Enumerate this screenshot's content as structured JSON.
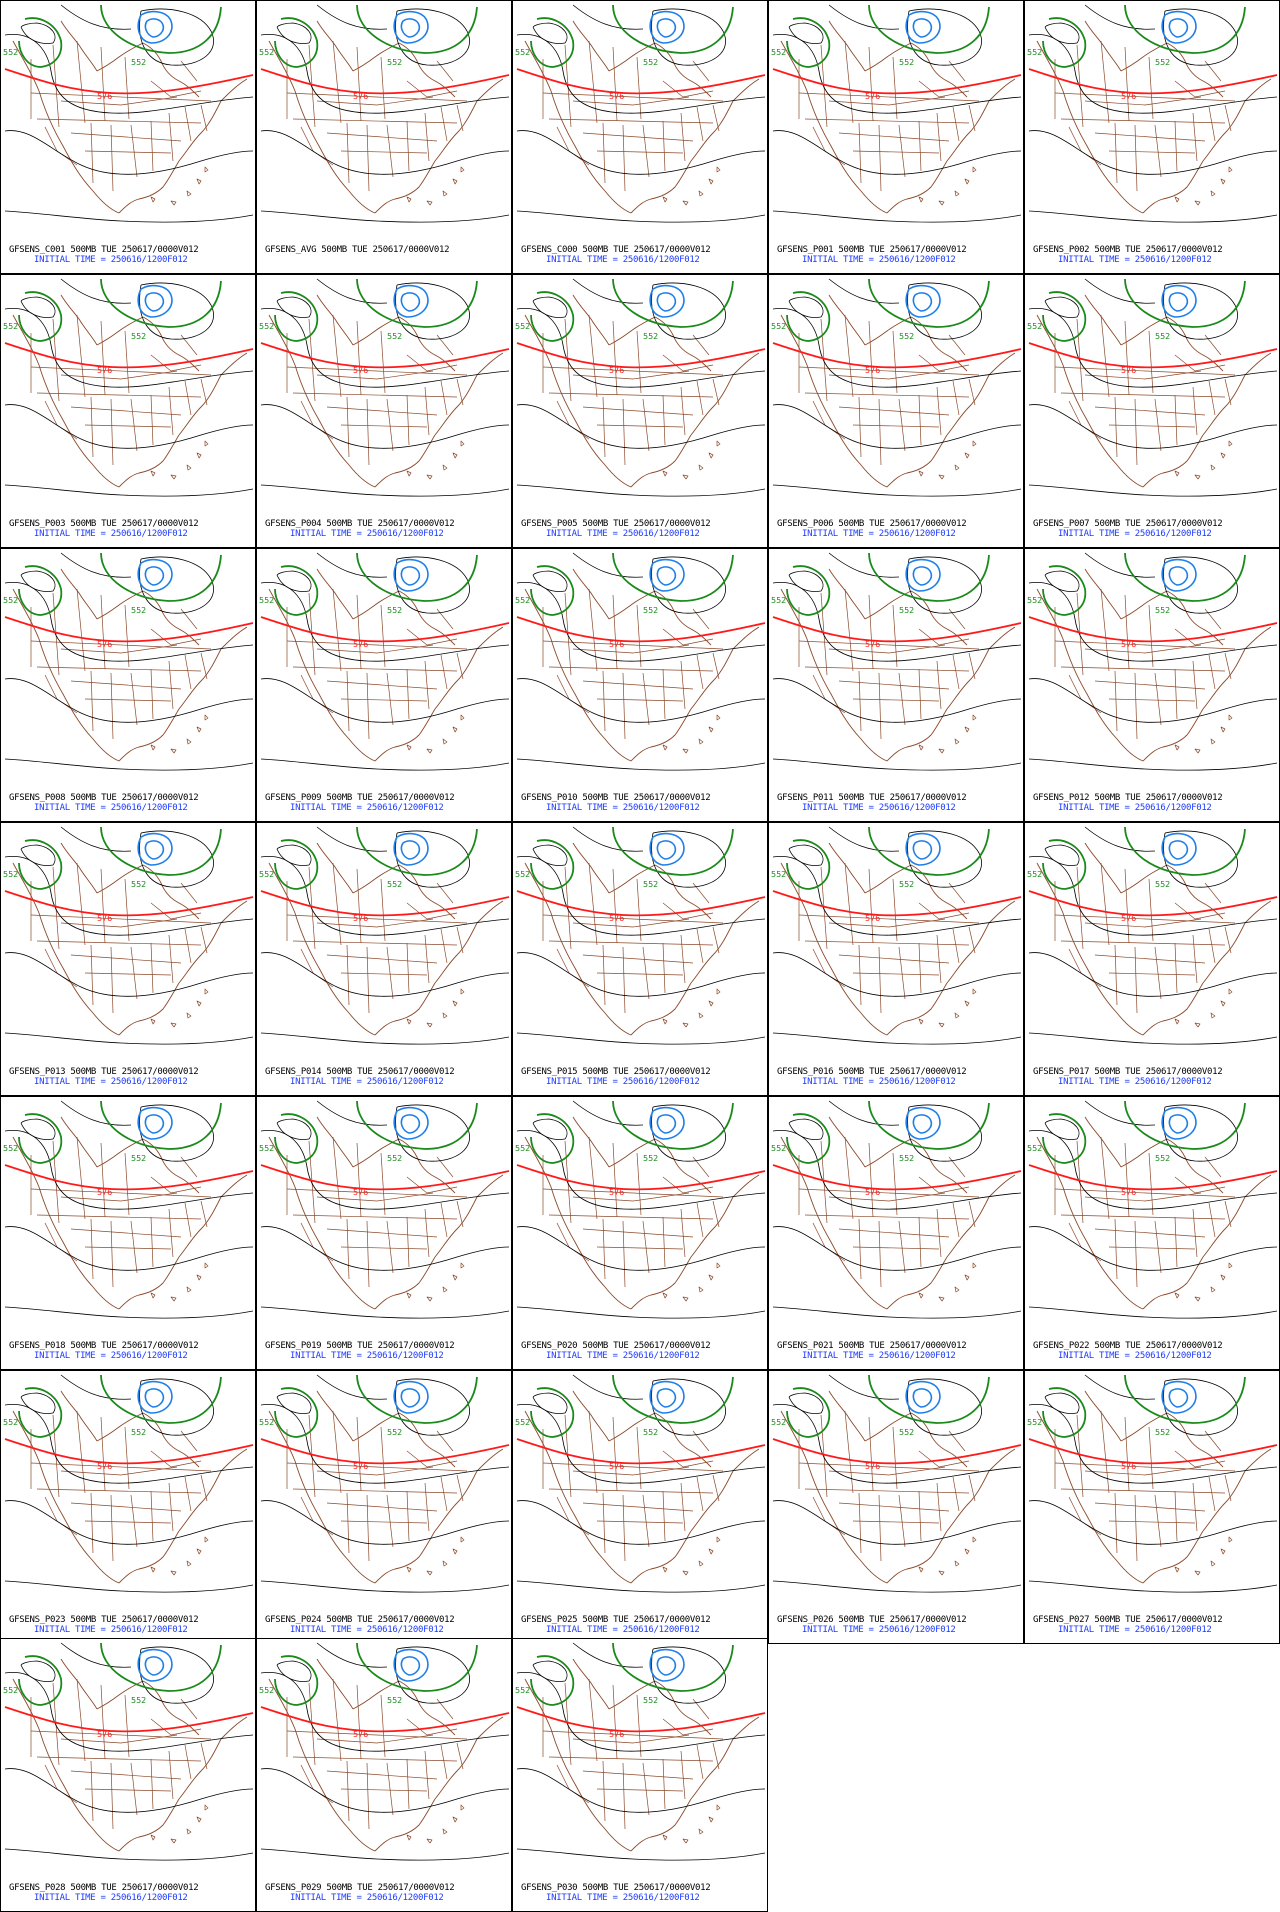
{
  "colors": {
    "background": "#ffffff",
    "map_border": "#8b4a2b",
    "height_contour": "#000000",
    "contour_552": "#1a8a1a",
    "contour_576": "#ff1a1a",
    "low_contour": "#1e7fe8",
    "title_text": "#000000",
    "time_text": "#1d3bff"
  },
  "contour_labels": {
    "green": "552",
    "red": "576"
  },
  "panels": [
    {
      "title": "GFSENS_C001 500MB TUE 250617/0000V012",
      "init": "INITIAL TIME = 250616/1200F012"
    },
    {
      "title": "GFSENS_AVG 500MB TUE 250617/0000V012",
      "init": ""
    },
    {
      "title": "GFSENS_C000 500MB TUE 250617/0000V012",
      "init": "INITIAL TIME = 250616/1200F012"
    },
    {
      "title": "GFSENS_P001 500MB TUE 250617/0000V012",
      "init": "INITIAL TIME = 250616/1200F012"
    },
    {
      "title": "GFSENS_P002 500MB TUE 250617/0000V012",
      "init": "INITIAL TIME = 250616/1200F012"
    },
    {
      "title": "GFSENS_P003 500MB TUE 250617/0000V012",
      "init": "INITIAL TIME = 250616/1200F012"
    },
    {
      "title": "GFSENS_P004 500MB TUE 250617/0000V012",
      "init": "INITIAL TIME = 250616/1200F012"
    },
    {
      "title": "GFSENS_P005 500MB TUE 250617/0000V012",
      "init": "INITIAL TIME = 250616/1200F012"
    },
    {
      "title": "GFSENS_P006 500MB TUE 250617/0000V012",
      "init": "INITIAL TIME = 250616/1200F012"
    },
    {
      "title": "GFSENS_P007 500MB TUE 250617/0000V012",
      "init": "INITIAL TIME = 250616/1200F012"
    },
    {
      "title": "GFSENS_P008 500MB TUE 250617/0000V012",
      "init": "INITIAL TIME = 250616/1200F012"
    },
    {
      "title": "GFSENS_P009 500MB TUE 250617/0000V012",
      "init": "INITIAL TIME = 250616/1200F012"
    },
    {
      "title": "GFSENS_P010 500MB TUE 250617/0000V012",
      "init": "INITIAL TIME = 250616/1200F012"
    },
    {
      "title": "GFSENS_P011 500MB TUE 250617/0000V012",
      "init": "INITIAL TIME = 250616/1200F012"
    },
    {
      "title": "GFSENS_P012 500MB TUE 250617/0000V012",
      "init": "INITIAL TIME = 250616/1200F012"
    },
    {
      "title": "GFSENS_P013 500MB TUE 250617/0000V012",
      "init": "INITIAL TIME = 250616/1200F012"
    },
    {
      "title": "GFSENS_P014 500MB TUE 250617/0000V012",
      "init": "INITIAL TIME = 250616/1200F012"
    },
    {
      "title": "GFSENS_P015 500MB TUE 250617/0000V012",
      "init": "INITIAL TIME = 250616/1200F012"
    },
    {
      "title": "GFSENS_P016 500MB TUE 250617/0000V012",
      "init": "INITIAL TIME = 250616/1200F012"
    },
    {
      "title": "GFSENS_P017 500MB TUE 250617/0000V012",
      "init": "INITIAL TIME = 250616/1200F012"
    },
    {
      "title": "GFSENS_P018 500MB TUE 250617/0000V012",
      "init": "INITIAL TIME = 250616/1200F012"
    },
    {
      "title": "GFSENS_P019 500MB TUE 250617/0000V012",
      "init": "INITIAL TIME = 250616/1200F012"
    },
    {
      "title": "GFSENS_P020 500MB TUE 250617/0000V012",
      "init": "INITIAL TIME = 250616/1200F012"
    },
    {
      "title": "GFSENS_P021 500MB TUE 250617/0000V012",
      "init": "INITIAL TIME = 250616/1200F012"
    },
    {
      "title": "GFSENS_P022 500MB TUE 250617/0000V012",
      "init": "INITIAL TIME = 250616/1200F012"
    },
    {
      "title": "GFSENS_P023 500MB TUE 250617/0000V012",
      "init": "INITIAL TIME = 250616/1200F012"
    },
    {
      "title": "GFSENS_P024 500MB TUE 250617/0000V012",
      "init": "INITIAL TIME = 250616/1200F012"
    },
    {
      "title": "GFSENS_P025 500MB TUE 250617/0000V012",
      "init": "INITIAL TIME = 250616/1200F012"
    },
    {
      "title": "GFSENS_P026 500MB TUE 250617/0000V012",
      "init": "INITIAL TIME = 250616/1200F012"
    },
    {
      "title": "GFSENS_P027 500MB TUE 250617/0000V012",
      "init": "INITIAL TIME = 250616/1200F012"
    },
    {
      "title": "GFSENS_P028 500MB TUE 250617/0000V012",
      "init": "INITIAL TIME = 250616/1200F012"
    },
    {
      "title": "GFSENS_P029 500MB TUE 250617/0000V012",
      "init": "INITIAL TIME = 250616/1200F012"
    },
    {
      "title": "GFSENS_P030 500MB TUE 250617/0000V012",
      "init": "INITIAL TIME = 250616/1200F012"
    }
  ]
}
